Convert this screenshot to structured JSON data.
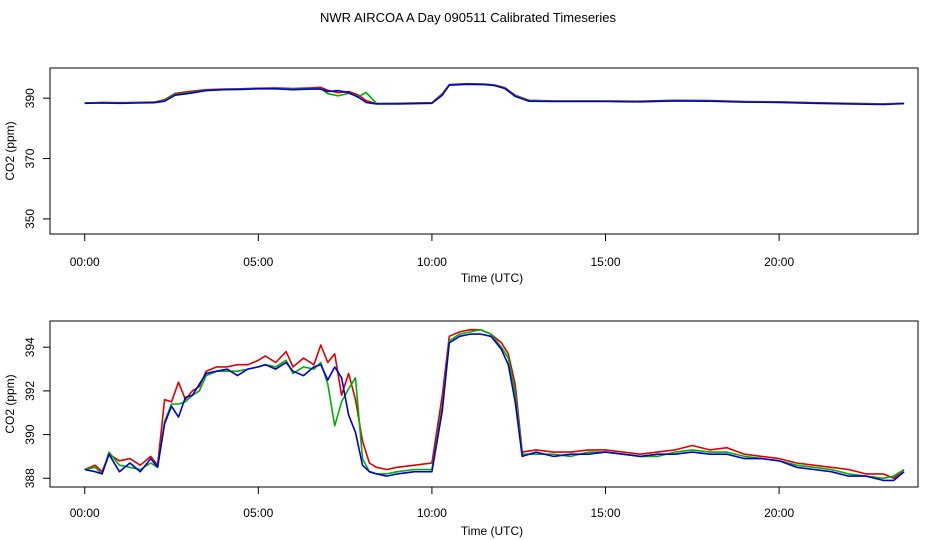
{
  "title": "NWR AIRCOA A  Day 090511  Calibrated Timeseries",
  "colors": {
    "series_red": "#e00000",
    "series_green": "#00b000",
    "series_blue": "#0000d0",
    "axes": "#000000"
  },
  "chart_data": [
    {
      "type": "line",
      "xlabel": "Time (UTC)",
      "ylabel": "CO2 (ppm)",
      "xlim": [
        -1.0,
        24.0
      ],
      "ylim": [
        345.0,
        400.0
      ],
      "xticks": [
        0,
        5,
        10,
        15,
        20
      ],
      "xtick_labels": [
        "00:00",
        "05:00",
        "10:00",
        "15:00",
        "20:00"
      ],
      "yticks": [
        350,
        370,
        390
      ],
      "ytick_labels": [
        "350",
        "370",
        "390"
      ],
      "grid": false,
      "series": [
        {
          "color": "#e00000",
          "x": [
            0.0,
            0.5,
            1.0,
            1.5,
            2.0,
            2.3,
            2.6,
            3.0,
            3.5,
            4.0,
            4.5,
            5.0,
            5.5,
            6.0,
            6.5,
            6.8,
            7.0,
            7.3,
            7.6,
            7.9,
            8.1,
            8.4,
            9.0,
            10.0,
            10.3,
            10.5,
            11.0,
            11.5,
            11.8,
            12.1,
            12.4,
            12.8,
            13.5,
            15.0,
            16.0,
            17.0,
            18.0,
            19.0,
            20.0,
            21.0,
            22.0,
            23.0,
            23.6
          ],
          "y": [
            388.4,
            388.6,
            388.5,
            388.6,
            388.7,
            389.5,
            391.6,
            392.2,
            392.8,
            393.0,
            393.1,
            393.3,
            393.4,
            393.2,
            393.4,
            393.6,
            392.6,
            391.8,
            392.2,
            391.0,
            389.2,
            388.2,
            388.3,
            388.5,
            391.5,
            394.5,
            394.8,
            394.7,
            394.4,
            393.5,
            391.0,
            389.3,
            389.1,
            389.1,
            389.0,
            389.3,
            389.2,
            388.9,
            388.8,
            388.5,
            388.3,
            388.1,
            388.3
          ]
        },
        {
          "color": "#00b000",
          "x": [
            0.0,
            0.5,
            1.0,
            1.5,
            2.0,
            2.3,
            2.6,
            3.0,
            3.5,
            4.0,
            4.5,
            5.0,
            5.5,
            6.0,
            6.5,
            6.8,
            7.0,
            7.3,
            7.6,
            7.9,
            8.1,
            8.4,
            9.0,
            10.0,
            10.3,
            10.5,
            11.0,
            11.5,
            11.8,
            12.1,
            12.4,
            12.8,
            13.5,
            15.0,
            16.0,
            17.0,
            18.0,
            19.0,
            20.0,
            21.0,
            22.0,
            23.0,
            23.6
          ],
          "y": [
            388.4,
            388.5,
            388.4,
            388.5,
            388.6,
            389.3,
            391.3,
            391.8,
            392.6,
            392.9,
            393.0,
            393.2,
            393.2,
            393.0,
            393.1,
            393.2,
            391.5,
            390.8,
            391.6,
            390.6,
            391.9,
            388.3,
            388.2,
            388.4,
            391.2,
            394.4,
            394.7,
            394.6,
            394.3,
            393.3,
            390.8,
            389.2,
            389.0,
            389.0,
            388.9,
            389.2,
            389.1,
            388.8,
            388.7,
            388.4,
            388.2,
            388.0,
            388.3
          ]
        },
        {
          "color": "#0000d0",
          "x": [
            0.0,
            0.5,
            1.0,
            1.5,
            2.0,
            2.3,
            2.6,
            3.0,
            3.5,
            4.0,
            4.5,
            5.0,
            5.5,
            6.0,
            6.5,
            6.8,
            7.0,
            7.3,
            7.6,
            7.9,
            8.1,
            8.4,
            9.0,
            10.0,
            10.3,
            10.5,
            11.0,
            11.5,
            11.8,
            12.1,
            12.4,
            12.8,
            13.5,
            15.0,
            16.0,
            17.0,
            18.0,
            19.0,
            20.0,
            21.0,
            22.0,
            23.0,
            23.6
          ],
          "y": [
            388.3,
            388.4,
            388.3,
            388.4,
            388.5,
            389.0,
            391.0,
            391.6,
            392.5,
            392.8,
            392.9,
            393.1,
            393.1,
            392.8,
            393.0,
            393.0,
            392.2,
            392.5,
            391.8,
            390.2,
            388.6,
            388.1,
            388.1,
            388.3,
            391.0,
            394.3,
            394.6,
            394.5,
            394.2,
            393.2,
            390.6,
            389.0,
            388.9,
            388.9,
            388.8,
            389.1,
            389.0,
            388.7,
            388.6,
            388.3,
            388.1,
            387.9,
            388.2
          ]
        }
      ]
    },
    {
      "type": "line",
      "xlabel": "Time (UTC)",
      "ylabel": "CO2 (ppm)",
      "xlim": [
        -1.0,
        24.0
      ],
      "ylim": [
        387.6,
        395.2
      ],
      "xticks": [
        0,
        5,
        10,
        15,
        20
      ],
      "xtick_labels": [
        "00:00",
        "05:00",
        "10:00",
        "15:00",
        "20:00"
      ],
      "yticks": [
        388,
        390,
        392,
        394
      ],
      "ytick_labels": [
        "388",
        "390",
        "392",
        "394"
      ],
      "grid": false,
      "series": [
        {
          "color": "#e00000",
          "x": [
            0.0,
            0.3,
            0.5,
            0.7,
            1.0,
            1.3,
            1.6,
            1.9,
            2.1,
            2.3,
            2.5,
            2.7,
            2.9,
            3.1,
            3.3,
            3.5,
            3.8,
            4.1,
            4.4,
            4.7,
            5.0,
            5.2,
            5.5,
            5.8,
            6.0,
            6.3,
            6.6,
            6.8,
            7.0,
            7.2,
            7.4,
            7.6,
            7.8,
            8.0,
            8.2,
            8.4,
            8.7,
            9.0,
            9.5,
            10.0,
            10.3,
            10.5,
            10.8,
            11.1,
            11.4,
            11.7,
            12.0,
            12.2,
            12.4,
            12.6,
            13.0,
            13.5,
            14.0,
            14.5,
            15.0,
            15.5,
            16.0,
            16.5,
            17.0,
            17.5,
            18.0,
            18.5,
            19.0,
            19.5,
            20.0,
            20.5,
            21.0,
            21.5,
            22.0,
            22.5,
            23.0,
            23.3,
            23.6
          ],
          "y": [
            388.4,
            388.6,
            388.3,
            389.1,
            388.8,
            388.9,
            388.6,
            389.0,
            388.6,
            391.6,
            391.5,
            392.4,
            391.6,
            392.0,
            392.2,
            392.9,
            393.1,
            393.1,
            393.2,
            393.2,
            393.4,
            393.6,
            393.3,
            393.8,
            393.1,
            393.5,
            393.2,
            394.1,
            393.3,
            393.7,
            391.8,
            392.8,
            391.6,
            389.7,
            388.7,
            388.5,
            388.4,
            388.5,
            388.6,
            388.7,
            391.8,
            394.5,
            394.7,
            394.8,
            394.8,
            394.6,
            394.2,
            393.7,
            392.3,
            389.2,
            389.3,
            389.2,
            389.2,
            389.3,
            389.3,
            389.2,
            389.1,
            389.2,
            389.3,
            389.5,
            389.3,
            389.4,
            389.1,
            389.0,
            388.9,
            388.7,
            388.6,
            388.5,
            388.4,
            388.2,
            388.2,
            388.0,
            388.4
          ]
        },
        {
          "color": "#00b000",
          "x": [
            0.0,
            0.3,
            0.5,
            0.7,
            1.0,
            1.3,
            1.6,
            1.9,
            2.1,
            2.3,
            2.5,
            2.7,
            2.9,
            3.1,
            3.3,
            3.5,
            3.8,
            4.1,
            4.4,
            4.7,
            5.0,
            5.2,
            5.5,
            5.8,
            6.0,
            6.3,
            6.6,
            6.8,
            7.0,
            7.2,
            7.4,
            7.6,
            7.8,
            8.0,
            8.2,
            8.4,
            8.7,
            9.0,
            9.5,
            10.0,
            10.3,
            10.5,
            10.8,
            11.1,
            11.4,
            11.7,
            12.0,
            12.2,
            12.4,
            12.6,
            13.0,
            13.5,
            14.0,
            14.5,
            15.0,
            15.5,
            16.0,
            16.5,
            17.0,
            17.5,
            18.0,
            18.5,
            19.0,
            19.5,
            20.0,
            20.5,
            21.0,
            21.5,
            22.0,
            22.5,
            23.0,
            23.3,
            23.6
          ],
          "y": [
            388.4,
            388.5,
            388.2,
            389.2,
            388.6,
            388.5,
            388.4,
            388.7,
            388.5,
            390.6,
            391.4,
            391.4,
            391.5,
            391.8,
            392.0,
            392.7,
            392.9,
            392.9,
            392.9,
            393.0,
            393.1,
            393.2,
            393.1,
            393.4,
            392.8,
            393.1,
            393.0,
            393.3,
            392.3,
            390.4,
            391.5,
            392.1,
            392.6,
            388.9,
            388.3,
            388.2,
            388.2,
            388.3,
            388.4,
            388.4,
            391.3,
            394.3,
            394.6,
            394.7,
            394.8,
            394.6,
            394.0,
            393.5,
            391.9,
            389.1,
            389.1,
            389.1,
            389.0,
            389.2,
            389.2,
            389.1,
            389.0,
            389.0,
            389.2,
            389.3,
            389.2,
            389.2,
            389.0,
            388.9,
            388.8,
            388.6,
            388.5,
            388.4,
            388.2,
            388.1,
            388.0,
            388.1,
            388.4
          ]
        },
        {
          "color": "#0000d0",
          "x": [
            0.0,
            0.3,
            0.5,
            0.7,
            1.0,
            1.3,
            1.6,
            1.9,
            2.1,
            2.3,
            2.5,
            2.7,
            2.9,
            3.1,
            3.3,
            3.5,
            3.8,
            4.1,
            4.4,
            4.7,
            5.0,
            5.2,
            5.5,
            5.8,
            6.0,
            6.3,
            6.6,
            6.8,
            7.0,
            7.2,
            7.4,
            7.6,
            7.8,
            8.0,
            8.2,
            8.4,
            8.7,
            9.0,
            9.5,
            10.0,
            10.3,
            10.5,
            10.8,
            11.1,
            11.4,
            11.7,
            12.0,
            12.2,
            12.4,
            12.6,
            13.0,
            13.5,
            14.0,
            14.5,
            15.0,
            15.5,
            16.0,
            16.5,
            17.0,
            17.5,
            18.0,
            18.5,
            19.0,
            19.5,
            20.0,
            20.5,
            21.0,
            21.5,
            22.0,
            22.5,
            23.0,
            23.3,
            23.6
          ],
          "y": [
            388.4,
            388.3,
            388.2,
            389.1,
            388.3,
            388.7,
            388.3,
            388.9,
            388.5,
            390.5,
            391.3,
            390.8,
            391.7,
            391.8,
            392.3,
            392.8,
            392.9,
            393.0,
            392.7,
            393.0,
            393.1,
            393.2,
            393.0,
            393.3,
            392.9,
            392.7,
            393.1,
            393.2,
            392.5,
            393.1,
            392.6,
            390.9,
            390.1,
            388.6,
            388.3,
            388.2,
            388.1,
            388.2,
            388.3,
            388.3,
            391.1,
            394.2,
            394.5,
            394.6,
            394.6,
            394.5,
            393.9,
            393.2,
            391.5,
            389.0,
            389.2,
            389.0,
            389.1,
            389.1,
            389.2,
            389.1,
            389.0,
            389.1,
            389.1,
            389.2,
            389.1,
            389.1,
            388.9,
            388.9,
            388.8,
            388.5,
            388.4,
            388.3,
            388.1,
            388.1,
            387.9,
            387.9,
            388.3
          ]
        }
      ]
    }
  ]
}
